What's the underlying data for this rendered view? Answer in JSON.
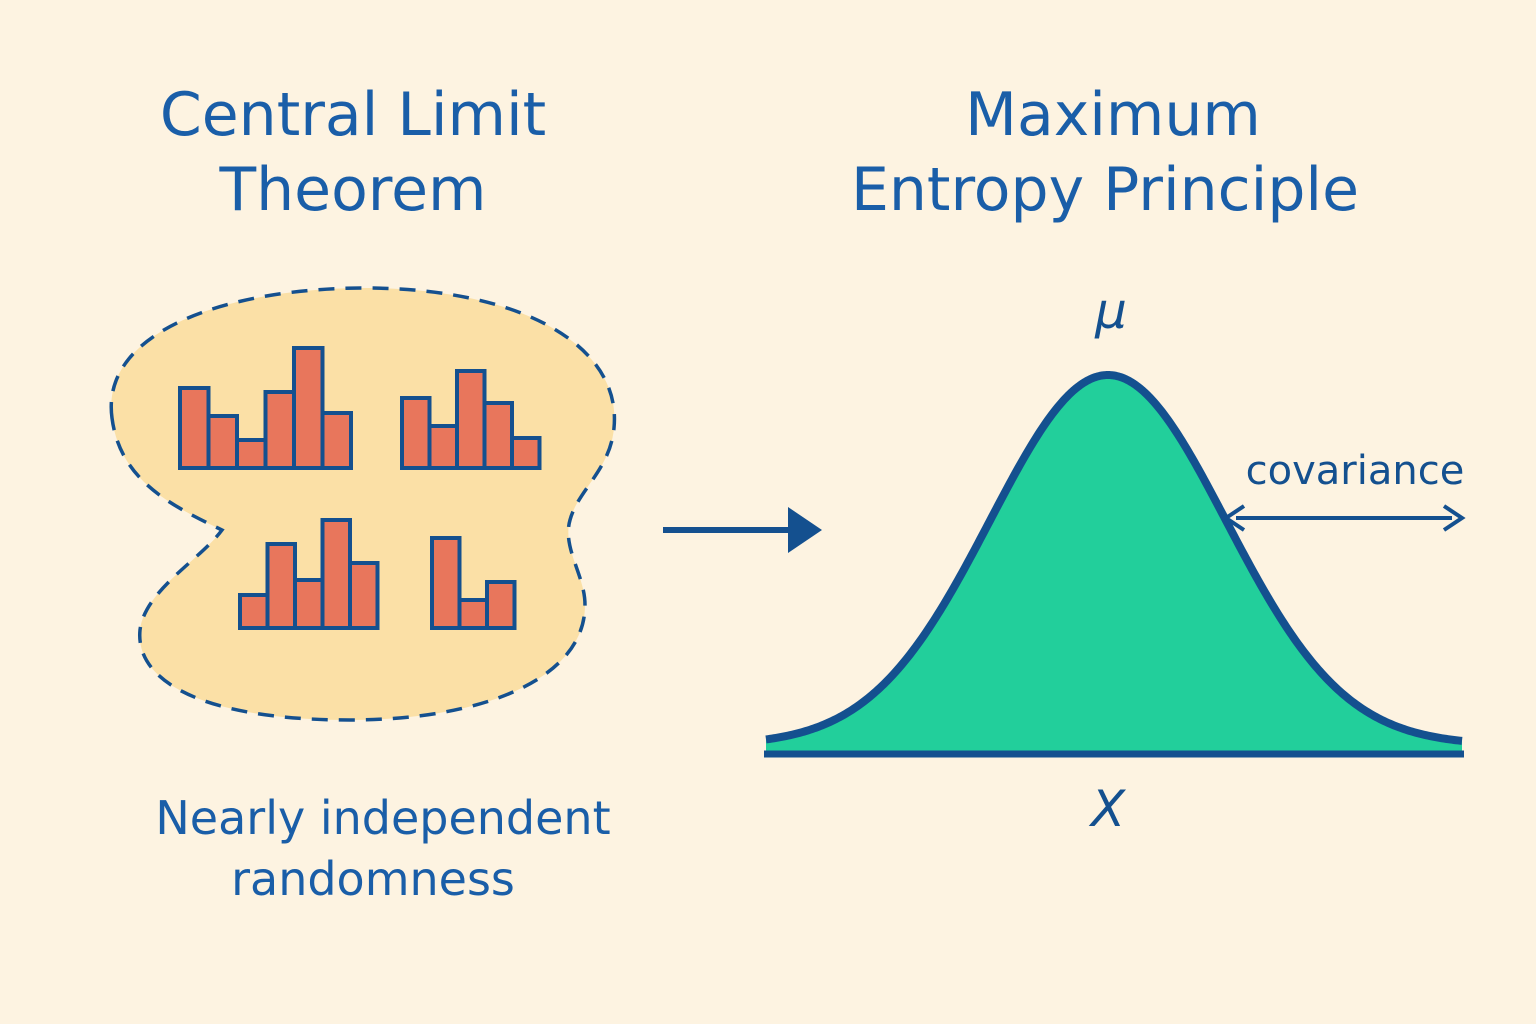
{
  "colors": {
    "background": "#fdf3e1",
    "title_blue": "#1a5ea8",
    "outline_navy": "#14508f",
    "bar_fill": "#e8765c",
    "blob_fill": "#fbe0a6",
    "bell_fill": "#22cf9b"
  },
  "left_panel": {
    "title_line1": "Central Limit",
    "title_line2": "Theorem",
    "caption_line1": "Nearly independent",
    "caption_line2": "randomness",
    "histograms": [
      {
        "values": [
          80,
          52,
          28,
          76,
          120,
          55
        ]
      },
      {
        "values": [
          70,
          42,
          97,
          65,
          30
        ]
      },
      {
        "values": [
          33,
          84,
          48,
          108,
          65
        ]
      },
      {
        "values": [
          90,
          28,
          46
        ]
      }
    ]
  },
  "arrow": {
    "icon": "right-arrow-icon"
  },
  "right_panel": {
    "title_line1": "Maximum",
    "title_line2": "Entropy Principle",
    "mu_label": "μ",
    "x_label": "X",
    "covariance_label": "covariance",
    "covariance_icon": "double-headed-arrow-icon"
  }
}
